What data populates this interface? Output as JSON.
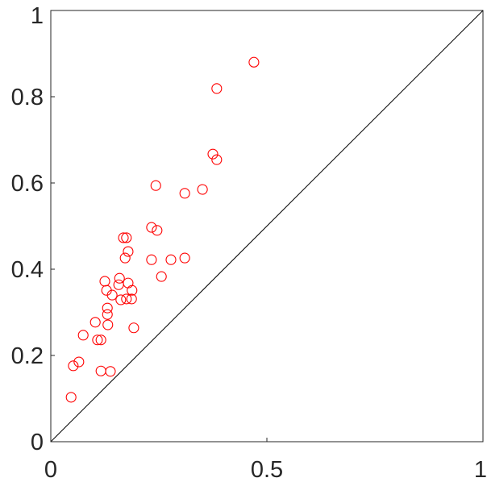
{
  "chart_data": {
    "type": "scatter",
    "color": "#ff0000",
    "xlim": [
      0,
      1
    ],
    "ylim": [
      0,
      1
    ],
    "xticks": [
      0,
      0.5,
      1
    ],
    "yticks": [
      0,
      0.2,
      0.4,
      0.6,
      0.8,
      1
    ],
    "x": [
      0.047,
      0.052,
      0.065,
      0.075,
      0.103,
      0.108,
      0.116,
      0.116,
      0.138,
      0.125,
      0.129,
      0.131,
      0.131,
      0.132,
      0.142,
      0.159,
      0.157,
      0.162,
      0.168,
      0.175,
      0.172,
      0.179,
      0.175,
      0.179,
      0.187,
      0.188,
      0.192,
      0.233,
      0.243,
      0.246,
      0.233,
      0.256,
      0.278,
      0.31,
      0.31,
      0.351,
      0.375,
      0.384,
      0.384,
      0.47
    ],
    "values": [
      0.103,
      0.176,
      0.185,
      0.247,
      0.277,
      0.236,
      0.236,
      0.164,
      0.163,
      0.372,
      0.351,
      0.31,
      0.295,
      0.271,
      0.34,
      0.379,
      0.364,
      0.329,
      0.473,
      0.473,
      0.426,
      0.441,
      0.331,
      0.368,
      0.331,
      0.351,
      0.264,
      0.497,
      0.594,
      0.49,
      0.422,
      0.383,
      0.422,
      0.426,
      0.576,
      0.585,
      0.667,
      0.654,
      0.819,
      0.88
    ]
  }
}
